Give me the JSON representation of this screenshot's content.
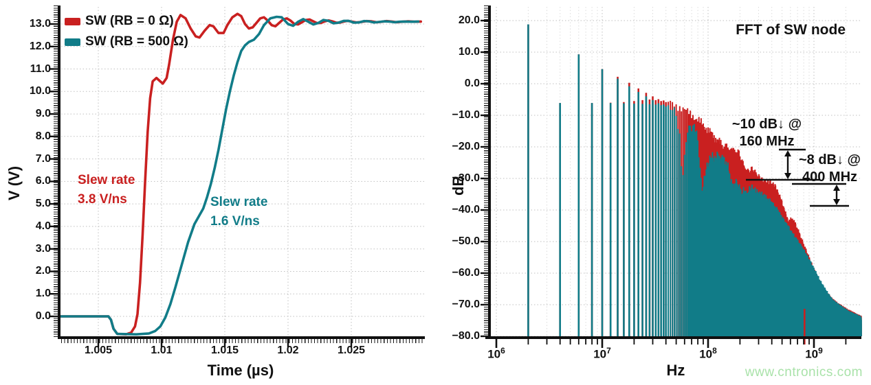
{
  "watermark": {
    "text": "www.cntronics.com",
    "color": "#a9e2a9"
  },
  "colors": {
    "red": "#c92020",
    "teal": "#117c88",
    "axis": "#0f0f0f",
    "grid_major": "#bfbfbf",
    "grid_minor": "#dcdcdc"
  },
  "chart_data": [
    {
      "type": "line",
      "title": "",
      "xlabel": "Time (µs)",
      "ylabel": "V (V)",
      "xlim": [
        1.002,
        1.0308
      ],
      "ylim": [
        -0.98,
        13.76
      ],
      "x_ticks": [
        1.005,
        1.01,
        1.015,
        1.02,
        1.025
      ],
      "x_tick_labels": [
        "1.005",
        "1.01",
        "1.015",
        "1.02",
        "1.025"
      ],
      "y_ticks": [
        0,
        1,
        2,
        3,
        4,
        5,
        6,
        7,
        8,
        9,
        10,
        11,
        12,
        13
      ],
      "y_tick_labels": [
        "0.0",
        "1.0",
        "2.0",
        "3.0",
        "4.0",
        "5.0",
        "6.0",
        "7.0",
        "8.0",
        "9.0",
        "10.0",
        "11.0",
        "12.0",
        "13.0"
      ],
      "grid": true,
      "legend_position": "top-left",
      "legend": [
        {
          "label": "SW (RB = 0 Ω)",
          "color": "#c92020"
        },
        {
          "label": "SW (RB = 500 Ω)",
          "color": "#117c88"
        }
      ],
      "annotations": [
        {
          "lines": [
            "Slew rate",
            "3.8 V/ns"
          ],
          "color": "#c92020"
        },
        {
          "lines": [
            "Slew rate",
            "1.6 V/ns"
          ],
          "color": "#117c88"
        }
      ],
      "series": [
        {
          "name": "SW (RB = 0 Ω)",
          "color": "#c92020",
          "points": [
            [
              1.002,
              0
            ],
            [
              1.0058,
              0
            ],
            [
              1.006,
              -0.15
            ],
            [
              1.0062,
              -0.55
            ],
            [
              1.0065,
              -0.78
            ],
            [
              1.0072,
              -0.8
            ],
            [
              1.0076,
              -0.72
            ],
            [
              1.0079,
              -0.45
            ],
            [
              1.0081,
              0.1
            ],
            [
              1.0083,
              1.5
            ],
            [
              1.0085,
              3.6
            ],
            [
              1.0087,
              6
            ],
            [
              1.0089,
              8.2
            ],
            [
              1.0091,
              9.7
            ],
            [
              1.0093,
              10.45
            ],
            [
              1.0096,
              10.6
            ],
            [
              1.0099,
              10.45
            ],
            [
              1.0101,
              10.35
            ],
            [
              1.0104,
              10.6
            ],
            [
              1.0106,
              11.2
            ],
            [
              1.0109,
              12.3
            ],
            [
              1.0112,
              13.1
            ],
            [
              1.0115,
              13.4
            ],
            [
              1.0119,
              13.25
            ],
            [
              1.0123,
              12.8
            ],
            [
              1.0127,
              12.45
            ],
            [
              1.013,
              12.4
            ],
            [
              1.0134,
              12.7
            ],
            [
              1.0138,
              12.95
            ],
            [
              1.0141,
              12.9
            ],
            [
              1.0145,
              12.6
            ],
            [
              1.0149,
              12.6
            ],
            [
              1.0152,
              12.95
            ],
            [
              1.0156,
              13.3
            ],
            [
              1.016,
              13.45
            ],
            [
              1.0163,
              13.35
            ],
            [
              1.0166,
              13
            ],
            [
              1.0169,
              12.8
            ],
            [
              1.0172,
              12.85
            ],
            [
              1.0175,
              13.05
            ],
            [
              1.0178,
              13.25
            ],
            [
              1.0181,
              13.3
            ],
            [
              1.0184,
              13.15
            ],
            [
              1.0187,
              12.95
            ],
            [
              1.019,
              12.9
            ],
            [
              1.0193,
              13.05
            ],
            [
              1.0196,
              13.2
            ],
            [
              1.0199,
              13.25
            ],
            [
              1.0202,
              13.15
            ],
            [
              1.0205,
              13
            ],
            [
              1.0208,
              12.98
            ],
            [
              1.0211,
              13.08
            ],
            [
              1.0214,
              13.18
            ],
            [
              1.0217,
              13.2
            ],
            [
              1.022,
              13.12
            ],
            [
              1.0223,
              13.04
            ],
            [
              1.0226,
              13.05
            ],
            [
              1.0229,
              13.12
            ],
            [
              1.0232,
              13.16
            ],
            [
              1.0235,
              13.12
            ],
            [
              1.0238,
              13.06
            ],
            [
              1.0241,
              13.06
            ],
            [
              1.0244,
              13.11
            ],
            [
              1.0247,
              13.14
            ],
            [
              1.025,
              13.11
            ],
            [
              1.0254,
              13.07
            ],
            [
              1.0258,
              13.09
            ],
            [
              1.0262,
              13.13
            ],
            [
              1.0266,
              13.12
            ],
            [
              1.027,
              13.08
            ],
            [
              1.0274,
              13.1
            ],
            [
              1.0278,
              13.13
            ],
            [
              1.0282,
              13.11
            ],
            [
              1.0286,
              13.08
            ],
            [
              1.029,
              13.1
            ],
            [
              1.0295,
              13.12
            ],
            [
              1.03,
              13.1
            ],
            [
              1.0305,
              13.11
            ]
          ]
        },
        {
          "name": "SW (RB = 500 Ω)",
          "color": "#117c88",
          "points": [
            [
              1.002,
              0
            ],
            [
              1.0058,
              0
            ],
            [
              1.006,
              -0.15
            ],
            [
              1.0062,
              -0.55
            ],
            [
              1.0065,
              -0.78
            ],
            [
              1.008,
              -0.8
            ],
            [
              1.009,
              -0.76
            ],
            [
              1.0095,
              -0.65
            ],
            [
              1.0099,
              -0.45
            ],
            [
              1.0103,
              -0.05
            ],
            [
              1.0107,
              0.55
            ],
            [
              1.0111,
              1.3
            ],
            [
              1.0116,
              2.3
            ],
            [
              1.0121,
              3.3
            ],
            [
              1.0126,
              4.1
            ],
            [
              1.013,
              4.5
            ],
            [
              1.0133,
              4.8
            ],
            [
              1.0136,
              5.3
            ],
            [
              1.0139,
              5.9
            ],
            [
              1.0142,
              6.6
            ],
            [
              1.0145,
              7.4
            ],
            [
              1.0148,
              8.3
            ],
            [
              1.0151,
              9.2
            ],
            [
              1.0154,
              10
            ],
            [
              1.0157,
              10.7
            ],
            [
              1.016,
              11.3
            ],
            [
              1.0163,
              11.8
            ],
            [
              1.0166,
              12.05
            ],
            [
              1.0169,
              12.2
            ],
            [
              1.0173,
              12.3
            ],
            [
              1.0177,
              12.55
            ],
            [
              1.0181,
              12.95
            ],
            [
              1.0186,
              13.25
            ],
            [
              1.0191,
              13.32
            ],
            [
              1.0195,
              13.3
            ],
            [
              1.02,
              13
            ],
            [
              1.0204,
              12.92
            ],
            [
              1.0208,
              13.1
            ],
            [
              1.0212,
              13.22
            ],
            [
              1.0216,
              13.1
            ],
            [
              1.022,
              12.98
            ],
            [
              1.0224,
              13.05
            ],
            [
              1.0228,
              13.18
            ],
            [
              1.0232,
              13.14
            ],
            [
              1.0236,
              13.03
            ],
            [
              1.024,
              13.06
            ],
            [
              1.0244,
              13.14
            ],
            [
              1.0248,
              13.14
            ],
            [
              1.0252,
              13.06
            ],
            [
              1.0256,
              13.07
            ],
            [
              1.026,
              13.13
            ],
            [
              1.0264,
              13.12
            ],
            [
              1.0268,
              13.07
            ],
            [
              1.0272,
              13.09
            ],
            [
              1.0276,
              13.12
            ],
            [
              1.028,
              13.11
            ],
            [
              1.0284,
              13.08
            ],
            [
              1.0288,
              13.1
            ],
            [
              1.0293,
              13.11
            ],
            [
              1.0298,
              13.1
            ],
            [
              1.0303,
              13.11
            ]
          ]
        }
      ]
    },
    {
      "type": "bar",
      "title": "FFT of SW node",
      "xlabel": "Hz",
      "ylabel": "dB",
      "x_scale": "log",
      "xlim_hz": [
        900000,
        2800000000
      ],
      "ylim": [
        -80,
        20
      ],
      "y_ticks": [
        20,
        10,
        0,
        -10,
        -20,
        -30,
        -40,
        -50,
        -60,
        -70,
        -80
      ],
      "y_tick_labels": [
        "20.0",
        "10.0",
        "0.0",
        "−10.0",
        "−20.0",
        "−30.0",
        "−40.0",
        "−50.0",
        "−60.0",
        "−70.0",
        "−80.0"
      ],
      "x_decade_exponents": [
        "6",
        "7",
        "8",
        "9"
      ],
      "grid": true,
      "fundamental_mhz": 2,
      "harmonic_lines_mhz_teal_red_db": [
        [
          2,
          18.8,
          18.8
        ],
        [
          4,
          -6.1,
          -6.1
        ],
        [
          6,
          9.3,
          9.3
        ],
        [
          8,
          -6.1,
          -6.1
        ],
        [
          10,
          4.6,
          4.6
        ],
        [
          12,
          -6.1,
          -6.0
        ],
        [
          14,
          1.6,
          2.2
        ],
        [
          16,
          -6.2,
          -5.8
        ],
        [
          18,
          -0.8,
          0.3
        ],
        [
          20,
          -6.3,
          -5.5
        ],
        [
          22,
          -2.6,
          -1.5
        ],
        [
          24,
          -6.4,
          -5.2
        ],
        [
          26,
          -4.0,
          -2.9
        ],
        [
          28,
          -6.5,
          -5.0
        ],
        [
          30,
          -5.2,
          -4.0
        ],
        [
          32,
          -6.6,
          -5.2
        ],
        [
          34,
          -6.2,
          -4.9
        ],
        [
          36,
          -6.8,
          -5.5
        ],
        [
          38,
          -6.6,
          -5.3
        ],
        [
          40,
          -7.2,
          -5.8
        ]
      ],
      "envelope_teal_mhz_db": [
        [
          40,
          -7.2
        ],
        [
          46,
          -8.5
        ],
        [
          50,
          -10
        ],
        [
          54,
          -16
        ],
        [
          57,
          -30
        ],
        [
          60,
          -24
        ],
        [
          64,
          -15
        ],
        [
          68,
          -13
        ],
        [
          74,
          -13.5
        ],
        [
          78,
          -16
        ],
        [
          82,
          -22
        ],
        [
          86,
          -30
        ],
        [
          89,
          -34
        ],
        [
          93,
          -30
        ],
        [
          97,
          -26
        ],
        [
          102,
          -24
        ],
        [
          110,
          -23.3
        ],
        [
          120,
          -23
        ],
        [
          135,
          -23.5
        ],
        [
          148,
          -25
        ],
        [
          158,
          -28
        ],
        [
          166,
          -31.5
        ],
        [
          172,
          -33
        ],
        [
          180,
          -31.5
        ],
        [
          190,
          -32
        ],
        [
          200,
          -33.5
        ],
        [
          210,
          -35.5
        ],
        [
          220,
          -34
        ],
        [
          232,
          -36
        ],
        [
          245,
          -34
        ],
        [
          260,
          -33.5
        ],
        [
          275,
          -34.5
        ],
        [
          290,
          -35
        ],
        [
          310,
          -35.5
        ],
        [
          340,
          -36.5
        ],
        [
          370,
          -37.5
        ],
        [
          400,
          -38.8
        ],
        [
          440,
          -40.5
        ],
        [
          480,
          -42.5
        ],
        [
          520,
          -44.5
        ],
        [
          560,
          -46
        ],
        [
          620,
          -48.5
        ],
        [
          700,
          -51
        ],
        [
          800,
          -54
        ],
        [
          900,
          -57
        ],
        [
          1000,
          -60
        ],
        [
          1150,
          -64
        ],
        [
          1300,
          -67
        ],
        [
          1500,
          -70
        ],
        [
          1800,
          -72
        ],
        [
          2200,
          -74
        ],
        [
          2800,
          -75.5
        ]
      ],
      "envelope_red_mhz_db": [
        [
          40,
          -5.8
        ],
        [
          46,
          -6.2
        ],
        [
          52,
          -7
        ],
        [
          58,
          -8
        ],
        [
          64,
          -9
        ],
        [
          72,
          -10
        ],
        [
          80,
          -11.5
        ],
        [
          90,
          -13
        ],
        [
          100,
          -14.5
        ],
        [
          112,
          -16.5
        ],
        [
          124,
          -18
        ],
        [
          136,
          -19.5
        ],
        [
          148,
          -20.3
        ],
        [
          160,
          -21
        ],
        [
          172,
          -21.3
        ],
        [
          185,
          -21.8
        ],
        [
          196,
          -22.5
        ],
        [
          205,
          -24
        ],
        [
          215,
          -26
        ],
        [
          228,
          -27.5
        ],
        [
          240,
          -28.3
        ],
        [
          252,
          -27.8
        ],
        [
          265,
          -27.6
        ],
        [
          280,
          -28.5
        ],
        [
          300,
          -30
        ],
        [
          320,
          -31
        ],
        [
          345,
          -31.6
        ],
        [
          370,
          -31.9
        ],
        [
          400,
          -32
        ],
        [
          425,
          -33
        ],
        [
          450,
          -34.5
        ],
        [
          475,
          -36.5
        ],
        [
          500,
          -38.5
        ],
        [
          525,
          -40.5
        ],
        [
          550,
          -43
        ],
        [
          575,
          -44.5
        ],
        [
          600,
          -44
        ],
        [
          630,
          -43.8
        ],
        [
          660,
          -45
        ],
        [
          700,
          -47
        ],
        [
          750,
          -49.5
        ],
        [
          800,
          -52
        ],
        [
          860,
          -54.5
        ],
        [
          920,
          -57
        ],
        [
          1000,
          -60
        ],
        [
          1100,
          -63
        ],
        [
          1250,
          -66.5
        ],
        [
          1450,
          -69
        ],
        [
          1700,
          -71
        ],
        [
          2100,
          -73
        ],
        [
          2800,
          -75
        ]
      ],
      "annotations": [
        {
          "lines": [
            "~10 dB↓ @",
            "160 MHz"
          ],
          "measured_drop_db": 10,
          "at_mhz": 160,
          "from_db": -21.5,
          "to_db": -31.5
        },
        {
          "lines": [
            "~8 dB↓ @",
            "400 MHz"
          ],
          "measured_drop_db": 8,
          "at_mhz": 400,
          "from_db": -32,
          "to_db": -39
        }
      ]
    }
  ]
}
